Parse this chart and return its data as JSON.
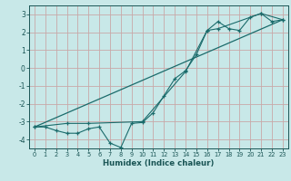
{
  "xlabel": "Humidex (Indice chaleur)",
  "bg_color": "#c8e8e8",
  "grid_color": "#c8a8a8",
  "line_color": "#1a6b6b",
  "text_color": "#1a5555",
  "ylim": [
    -4.5,
    3.5
  ],
  "xlim": [
    -0.5,
    23.5
  ],
  "yticks": [
    -4,
    -3,
    -2,
    -1,
    0,
    1,
    2,
    3
  ],
  "xticks": [
    0,
    1,
    2,
    3,
    4,
    5,
    6,
    7,
    8,
    9,
    10,
    11,
    12,
    13,
    14,
    15,
    16,
    17,
    18,
    19,
    20,
    21,
    22,
    23
  ],
  "line1_x": [
    0,
    1,
    2,
    3,
    4,
    5,
    6,
    7,
    8,
    9,
    10,
    11,
    12,
    13,
    14,
    15,
    16,
    17,
    18,
    19,
    20,
    21,
    22,
    23
  ],
  "line1_y": [
    -3.3,
    -3.3,
    -3.5,
    -3.65,
    -3.65,
    -3.4,
    -3.3,
    -4.2,
    -4.45,
    -3.1,
    -3.05,
    -2.5,
    -1.55,
    -0.6,
    -0.15,
    0.75,
    2.1,
    2.6,
    2.2,
    2.1,
    2.85,
    3.05,
    2.6,
    2.7
  ],
  "line2_x": [
    0,
    3,
    5,
    10,
    14,
    16,
    17,
    21,
    23
  ],
  "line2_y": [
    -3.3,
    -3.1,
    -3.1,
    -3.0,
    -0.2,
    2.1,
    2.2,
    3.05,
    2.7
  ],
  "trend_x": [
    0,
    23
  ],
  "trend_y": [
    -3.3,
    2.7
  ]
}
